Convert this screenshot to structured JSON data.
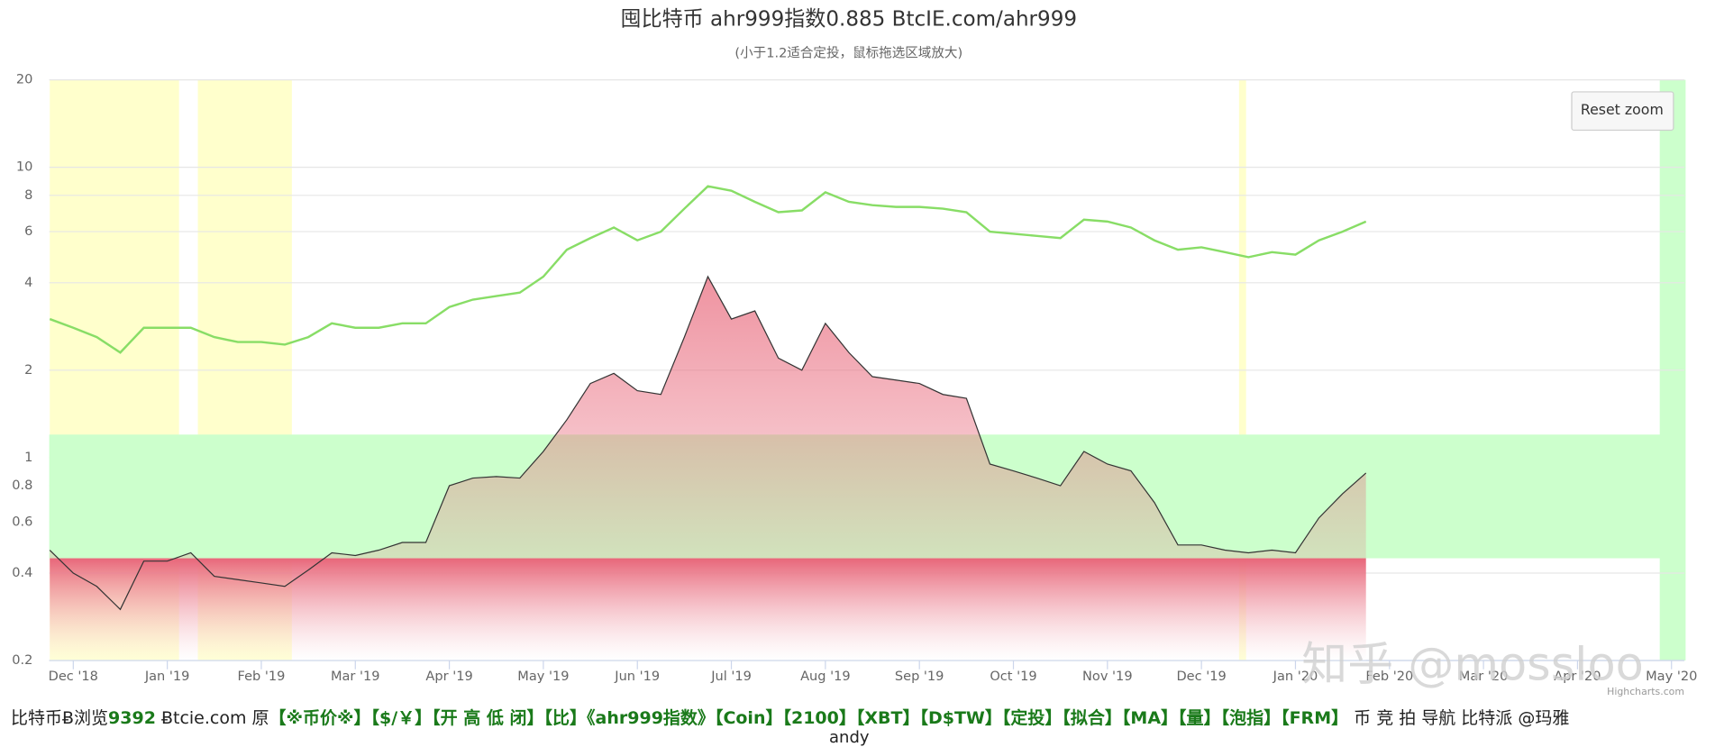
{
  "chart_data": {
    "type": "line-area",
    "title": "囤比特币 ahr999指数0.885 BtcIE.com/ahr999",
    "subtitle": "(小于1.2适合定投，鼠标拖选区域放大)",
    "reset_button": "Reset zoom",
    "credits": "Highcharts.com",
    "watermark": "知乎 @mossloo",
    "log_scale": true,
    "grid": true,
    "ylim": [
      0.2,
      20
    ],
    "yticks": [
      0.2,
      0.4,
      0.6,
      0.8,
      1,
      2,
      4,
      6,
      8,
      10,
      20
    ],
    "categories": [
      null,
      "Dec '18",
      null,
      null,
      null,
      "Jan '19",
      null,
      null,
      null,
      "Feb '19",
      null,
      null,
      null,
      "Mar '19",
      null,
      null,
      null,
      "Apr '19",
      null,
      null,
      null,
      "May '19",
      null,
      null,
      null,
      "Jun '19",
      null,
      null,
      null,
      "Jul '19",
      null,
      null,
      null,
      "Aug '19",
      null,
      null,
      null,
      "Sep '19",
      null,
      null,
      null,
      "Oct '19",
      null,
      null,
      null,
      "Nov '19",
      null,
      null,
      null,
      "Dec '19",
      null,
      null,
      null,
      "Jan '20",
      null,
      null,
      null,
      "Feb '20",
      null,
      null,
      null,
      "Mar '20",
      null,
      null,
      null,
      "Apr '20",
      null,
      null,
      null,
      "May '20"
    ],
    "y_plot_bands": [
      {
        "from": 0.45,
        "to": 1.2,
        "color": "#ccffcc"
      }
    ],
    "x_plot_bands": [
      {
        "from": 0,
        "to": 5.5,
        "color": "#ffffcc"
      },
      {
        "from": 6.3,
        "to": 10.3,
        "color": "#ffffcc"
      },
      {
        "from": 50.6,
        "to": 50.9,
        "color": "#ffffcc"
      },
      {
        "from": 68.5,
        "to": 69.6,
        "color": "#ccffcc"
      }
    ],
    "series": [
      {
        "color": "#88dd66",
        "values": [
          3.0,
          2.8,
          2.6,
          2.3,
          2.8,
          2.8,
          2.8,
          2.6,
          2.5,
          2.5,
          2.45,
          2.6,
          2.9,
          2.8,
          2.8,
          2.9,
          2.9,
          3.3,
          3.5,
          3.6,
          3.7,
          4.2,
          5.2,
          5.7,
          6.2,
          5.6,
          6.0,
          7.2,
          8.6,
          8.3,
          7.6,
          7.0,
          7.1,
          8.2,
          7.6,
          7.4,
          7.3,
          7.3,
          7.2,
          7.0,
          6.0,
          5.9,
          5.8,
          5.7,
          6.6,
          6.5,
          6.2,
          5.6,
          5.2,
          5.3,
          5.1,
          4.9,
          5.1,
          5.0,
          5.6,
          6.0,
          6.5,
          null,
          null,
          null,
          null,
          null,
          null,
          null,
          null,
          null,
          null,
          null,
          null,
          null
        ]
      },
      {
        "color": "#333333",
        "area_color": "#e8677a",
        "values": [
          0.48,
          0.4,
          0.36,
          0.3,
          0.44,
          0.44,
          0.47,
          0.39,
          0.38,
          0.37,
          0.36,
          0.41,
          0.47,
          0.46,
          0.48,
          0.51,
          0.51,
          0.8,
          0.85,
          0.86,
          0.85,
          1.05,
          1.35,
          1.8,
          1.95,
          1.7,
          1.65,
          2.6,
          4.2,
          3.0,
          3.2,
          2.2,
          2.0,
          2.9,
          2.3,
          1.9,
          1.85,
          1.8,
          1.65,
          1.6,
          0.95,
          0.9,
          0.85,
          0.8,
          1.05,
          0.95,
          0.9,
          0.7,
          0.5,
          0.5,
          0.48,
          0.47,
          0.48,
          0.47,
          0.62,
          0.75,
          0.885,
          null,
          null,
          null,
          null,
          null,
          null,
          null,
          null,
          null,
          null,
          null,
          null,
          null
        ]
      }
    ]
  },
  "nav": [
    {
      "text": "比特币Ƀ浏览",
      "bold": false
    },
    {
      "text": "9392",
      "bold": true
    },
    {
      "text": " Ƀtcie.com 原",
      "bold": false
    },
    {
      "text": "【※币价※】",
      "bold": true
    },
    {
      "text": "【$/￥】",
      "bold": true
    },
    {
      "text": "【开 高 低 闭】",
      "bold": true
    },
    {
      "text": "【比】",
      "bold": true
    },
    {
      "text": "《ahr999指数》",
      "bold": true
    },
    {
      "text": "【Coin】",
      "bold": true
    },
    {
      "text": "【2100】",
      "bold": true
    },
    {
      "text": "【XBT】",
      "bold": true
    },
    {
      "text": "【D$TW】",
      "bold": true
    },
    {
      "text": "【定投】",
      "bold": true
    },
    {
      "text": "【拟合】",
      "bold": true
    },
    {
      "text": "【MA】",
      "bold": true
    },
    {
      "text": "【量】",
      "bold": true
    },
    {
      "text": "【泡指】",
      "bold": true
    },
    {
      "text": "【FRM】",
      "bold": true
    },
    {
      "text": " 币 竞 拍 导航 比特派 @玛雅",
      "bold": false
    }
  ],
  "nav_cut": "andy"
}
